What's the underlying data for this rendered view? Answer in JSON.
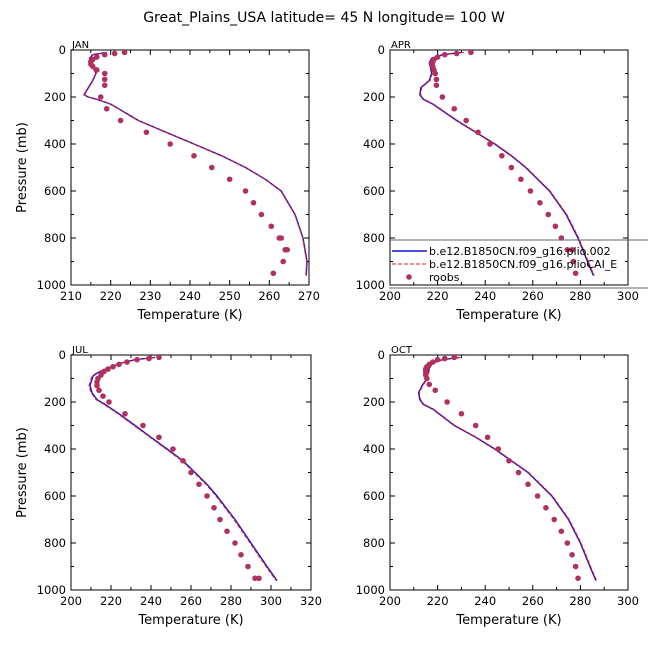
{
  "figure_title": "Great_Plains_USA  latitude= 45 N longitude= 100 W",
  "colors": {
    "model1": "#1010d8",
    "model2": "#e02020",
    "obs": "#b03060"
  },
  "legend": {
    "entries": [
      {
        "label": "b.e12.B1850CN.f09_g16.plio.002",
        "style": "solid"
      },
      {
        "label": "b.e12.B1850CN.f09_g16.plioCAI_E",
        "style": "dashed"
      },
      {
        "label": "roobs",
        "style": "dot"
      }
    ]
  },
  "chart_data": [
    {
      "type": "line",
      "panel": "JAN",
      "xlabel": "Temperature (K)",
      "ylabel": "Pressure (mb)",
      "xlim": [
        210,
        270
      ],
      "ylim": [
        1000,
        0
      ],
      "xticks": [
        210,
        220,
        230,
        240,
        250,
        260,
        270
      ],
      "yticks": [
        0,
        200,
        400,
        600,
        800,
        1000
      ],
      "series": [
        {
          "name": "b.e12.B1850CN.f09_g16.plio.002",
          "style": "solid",
          "x": [
            219,
            215.5,
            214.8,
            215.0,
            215.6,
            216.3,
            215.5,
            213.3,
            214.3,
            216.5,
            220,
            227,
            234,
            241,
            248,
            254,
            259,
            263,
            266.5,
            268.5,
            269.5,
            269.3
          ],
          "y": [
            10,
            20,
            35,
            55,
            75,
            100,
            130,
            190,
            200,
            210,
            230,
            300,
            350,
            400,
            450,
            500,
            550,
            600,
            700,
            800,
            900,
            960
          ]
        },
        {
          "name": "b.e12.B1850CN.f09_g16.plioCAI_E",
          "style": "dashed",
          "x": [
            219,
            215.3,
            214.6,
            214.9,
            215.5,
            216.2,
            215.4,
            213.2,
            214.2,
            216.4,
            219.9,
            226.9,
            233.9,
            240.9,
            247.9,
            253.9,
            258.9,
            262.9,
            266.4,
            268.4,
            269.4,
            269.2
          ],
          "y": [
            10,
            20,
            35,
            55,
            75,
            100,
            130,
            190,
            200,
            210,
            230,
            300,
            350,
            400,
            450,
            500,
            550,
            600,
            700,
            800,
            900,
            960
          ]
        },
        {
          "name": "roobs",
          "style": "dot",
          "x": [
            223.5,
            221,
            218.5,
            216.5,
            215.5,
            215,
            215,
            215.5,
            216.5,
            218.5,
            218.5,
            218.5,
            217.5,
            219,
            222.5,
            229,
            235,
            241,
            245.5,
            250,
            254,
            256,
            258,
            260.5,
            262.5,
            263,
            264,
            264.5,
            263.5,
            261
          ],
          "y": [
            10,
            15,
            20,
            30,
            40,
            50,
            60,
            70,
            85,
            100,
            125,
            150,
            200,
            250,
            300,
            350,
            400,
            450,
            500,
            550,
            600,
            650,
            700,
            750,
            800,
            800,
            850,
            850,
            900,
            950
          ]
        }
      ]
    },
    {
      "type": "line",
      "panel": "APR",
      "xlabel": "Temperature (K)",
      "ylabel": "",
      "xlim": [
        200,
        300
      ],
      "ylim": [
        1000,
        0
      ],
      "xticks": [
        200,
        220,
        240,
        260,
        280,
        300
      ],
      "yticks": [
        0,
        200,
        400,
        600,
        800,
        1000
      ],
      "series": [
        {
          "name": "b.e12.B1850CN.f09_g16.plio.002",
          "style": "solid",
          "x": [
            230,
            222,
            217.5,
            216.5,
            217,
            217.5,
            216.5,
            213,
            212.5,
            214,
            218,
            228,
            236,
            244,
            251,
            257,
            262,
            267,
            274,
            279,
            283,
            285.5
          ],
          "y": [
            10,
            20,
            35,
            55,
            75,
            100,
            130,
            160,
            190,
            210,
            230,
            300,
            350,
            400,
            450,
            500,
            550,
            600,
            700,
            800,
            900,
            960
          ]
        },
        {
          "name": "b.e12.B1850CN.f09_g16.plioCAI_E",
          "style": "dashed",
          "x": [
            231,
            222.5,
            217.8,
            216.8,
            217.3,
            217.8,
            216.8,
            213.3,
            212.8,
            214.3,
            218.3,
            228.3,
            236.3,
            244.3,
            251.3,
            257.3,
            262.3,
            267.3,
            274.3,
            279.3,
            283.3,
            285.8
          ],
          "y": [
            10,
            20,
            35,
            55,
            75,
            100,
            130,
            160,
            190,
            210,
            230,
            300,
            350,
            400,
            450,
            500,
            550,
            600,
            700,
            800,
            900,
            960
          ]
        },
        {
          "name": "roobs",
          "style": "dot",
          "x": [
            234,
            228,
            223,
            220,
            218.5,
            218,
            217.5,
            218,
            218.5,
            219,
            219.5,
            219.5,
            222,
            227,
            232,
            237,
            242,
            247,
            251,
            255,
            259,
            263,
            266.5,
            269.5,
            272,
            274.5,
            276.5,
            277,
            278
          ],
          "y": [
            10,
            15,
            20,
            30,
            40,
            50,
            60,
            70,
            85,
            100,
            125,
            150,
            200,
            250,
            300,
            350,
            400,
            450,
            500,
            550,
            600,
            650,
            700,
            750,
            800,
            850,
            850,
            900,
            950
          ]
        }
      ]
    },
    {
      "type": "line",
      "panel": "JUL",
      "xlabel": "Temperature (K)",
      "ylabel": "Pressure (mb)",
      "xlim": [
        200,
        320
      ],
      "ylim": [
        1000,
        0
      ],
      "xticks": [
        200,
        220,
        240,
        260,
        280,
        300,
        320
      ],
      "yticks": [
        0,
        200,
        400,
        600,
        800,
        1000
      ],
      "series": [
        {
          "name": "b.e12.B1850CN.f09_g16.plio.002",
          "style": "solid",
          "x": [
            242,
            232,
            225,
            219,
            213.5,
            211,
            209.5,
            210.5,
            213,
            217,
            224,
            232,
            240,
            248,
            256,
            262,
            268,
            273,
            282,
            290,
            298,
            303
          ],
          "y": [
            10,
            20,
            35,
            55,
            75,
            90,
            130,
            160,
            190,
            210,
            250,
            300,
            350,
            400,
            450,
            500,
            550,
            600,
            700,
            800,
            900,
            960
          ]
        },
        {
          "name": "b.e12.B1850CN.f09_g16.plioCAI_E",
          "style": "dashed",
          "x": [
            241.5,
            231.5,
            224.5,
            218.5,
            213,
            210.5,
            209,
            210,
            212.5,
            216.5,
            223.5,
            231.5,
            239.5,
            247.5,
            255.5,
            261.5,
            267.5,
            272.5,
            281.5,
            289.5,
            297.5,
            302.5
          ],
          "y": [
            10,
            20,
            35,
            55,
            75,
            90,
            130,
            160,
            190,
            210,
            250,
            300,
            350,
            400,
            450,
            500,
            550,
            600,
            700,
            800,
            900,
            960
          ]
        },
        {
          "name": "roobs",
          "style": "dot",
          "x": [
            244,
            239,
            233,
            228,
            224,
            221,
            218.5,
            216.5,
            215,
            213.5,
            213,
            213,
            214,
            216,
            219,
            227,
            236,
            244,
            251,
            256,
            260,
            264,
            268,
            271.5,
            274.5,
            278,
            282,
            285,
            288.5,
            292,
            294
          ],
          "y": [
            10,
            15,
            20,
            30,
            40,
            50,
            60,
            70,
            85,
            100,
            115,
            130,
            150,
            175,
            200,
            250,
            300,
            350,
            400,
            450,
            500,
            550,
            600,
            650,
            700,
            750,
            800,
            850,
            900,
            950,
            950
          ]
        }
      ]
    },
    {
      "type": "line",
      "panel": "OCT",
      "xlabel": "Temperature (K)",
      "ylabel": "",
      "xlim": [
        200,
        300
      ],
      "ylim": [
        1000,
        0
      ],
      "xticks": [
        200,
        220,
        240,
        260,
        280,
        300
      ],
      "yticks": [
        0,
        200,
        400,
        600,
        800,
        1000
      ],
      "series": [
        {
          "name": "b.e12.B1850CN.f09_g16.plio.002",
          "style": "solid",
          "x": [
            229,
            222,
            217.5,
            216.5,
            216,
            215.5,
            213.5,
            212,
            212.5,
            214,
            218,
            227,
            236,
            244,
            251,
            258,
            263,
            268,
            275,
            280,
            284,
            286.5
          ],
          "y": [
            10,
            20,
            35,
            55,
            75,
            100,
            130,
            160,
            190,
            210,
            230,
            300,
            350,
            400,
            450,
            500,
            550,
            600,
            700,
            800,
            900,
            960
          ]
        },
        {
          "name": "b.e12.B1850CN.f09_g16.plioCAI_E",
          "style": "dashed",
          "x": [
            229.5,
            222.5,
            217.8,
            216.8,
            216.3,
            215.8,
            213.8,
            212.3,
            212.8,
            214.3,
            218.3,
            227.3,
            236.3,
            244.3,
            251.3,
            258.3,
            263.3,
            268.3,
            275.3,
            280.3,
            284.3,
            286.8
          ],
          "y": [
            10,
            20,
            35,
            55,
            75,
            100,
            130,
            160,
            190,
            210,
            230,
            300,
            350,
            400,
            450,
            500,
            550,
            600,
            700,
            800,
            900,
            960
          ]
        },
        {
          "name": "roobs",
          "style": "dot",
          "x": [
            227,
            223,
            220,
            218,
            216.5,
            215.5,
            215,
            215,
            215,
            215.5,
            216.5,
            219,
            224,
            230,
            236,
            241,
            245.5,
            250,
            254,
            258,
            262,
            265.5,
            269,
            272,
            274.5,
            276.5,
            278,
            279
          ],
          "y": [
            10,
            15,
            20,
            30,
            40,
            50,
            60,
            70,
            85,
            100,
            125,
            150,
            200,
            250,
            300,
            350,
            400,
            450,
            500,
            550,
            600,
            650,
            700,
            750,
            800,
            850,
            900,
            950
          ]
        }
      ]
    }
  ]
}
